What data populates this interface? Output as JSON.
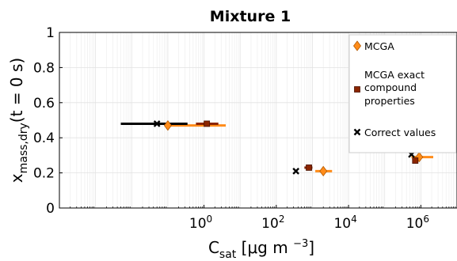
{
  "chart_data": {
    "type": "scatter",
    "title": "Mixture 1",
    "xlabel": "C_sat [μg m⁻³]",
    "xlabel_main": "C",
    "xlabel_sub": "sat",
    "xlabel_unit": "[μg m",
    "xlabel_unit_sup": "−3",
    "xlabel_close": "]",
    "ylabel": "x_mass,dry(t = 0 s)",
    "ylabel_main": "x",
    "ylabel_sub": "mass,dry",
    "ylabel_suffix": "(t = 0 s)",
    "x_scale": "log",
    "xlim": [
      0.0001,
      10000000
    ],
    "ylim": [
      0,
      1
    ],
    "y_ticks": [
      "0",
      "0.2",
      "0.4",
      "0.6",
      "0.8",
      "1"
    ],
    "x_ticks": [
      {
        "value": 1,
        "base": "10",
        "exp": "0"
      },
      {
        "value": 100,
        "base": "10",
        "exp": "2"
      },
      {
        "value": 10000,
        "base": "10",
        "exp": "4"
      },
      {
        "value": 1000000,
        "base": "10",
        "exp": "6"
      }
    ],
    "grid": true,
    "legend_position": "right",
    "series": [
      {
        "name": "MCGA",
        "marker": "diamond",
        "color": "#ff8c1a",
        "stroke": "#b35900",
        "points": [
          {
            "x": 0.1,
            "y": 0.47,
            "xerr": [
              0.1,
              4
            ]
          },
          {
            "x": 2000,
            "y": 0.21,
            "xerr": [
              1200,
              3500
            ]
          },
          {
            "x": 900000,
            "y": 0.29,
            "xerr": [
              550000,
              2200000
            ]
          }
        ]
      },
      {
        "name": "MCGA exact compound properties",
        "marker": "square",
        "color": "#8b2500",
        "stroke": "#4a1200",
        "points": [
          {
            "x": 1.2,
            "y": 0.48,
            "xerr": [
              0.6,
              2.5
            ]
          },
          {
            "x": 800,
            "y": 0.23,
            "xerr": [
              600,
              1000
            ]
          },
          {
            "x": 700000,
            "y": 0.27,
            "xerr": [
              600000,
              800000
            ]
          }
        ]
      },
      {
        "name": "Correct values",
        "marker": "x",
        "color": "#000000",
        "stroke": "#000000",
        "points": [
          {
            "x": 0.05,
            "y": 0.48,
            "xerr": [
              0.005,
              0.35
            ]
          },
          {
            "x": 350,
            "y": 0.21,
            "xerr": null
          },
          {
            "x": 550000,
            "y": 0.305,
            "xerr": null
          }
        ]
      }
    ],
    "legend_entries": [
      "MCGA",
      "MCGA exact",
      "compound",
      "properties",
      "Correct values"
    ]
  }
}
